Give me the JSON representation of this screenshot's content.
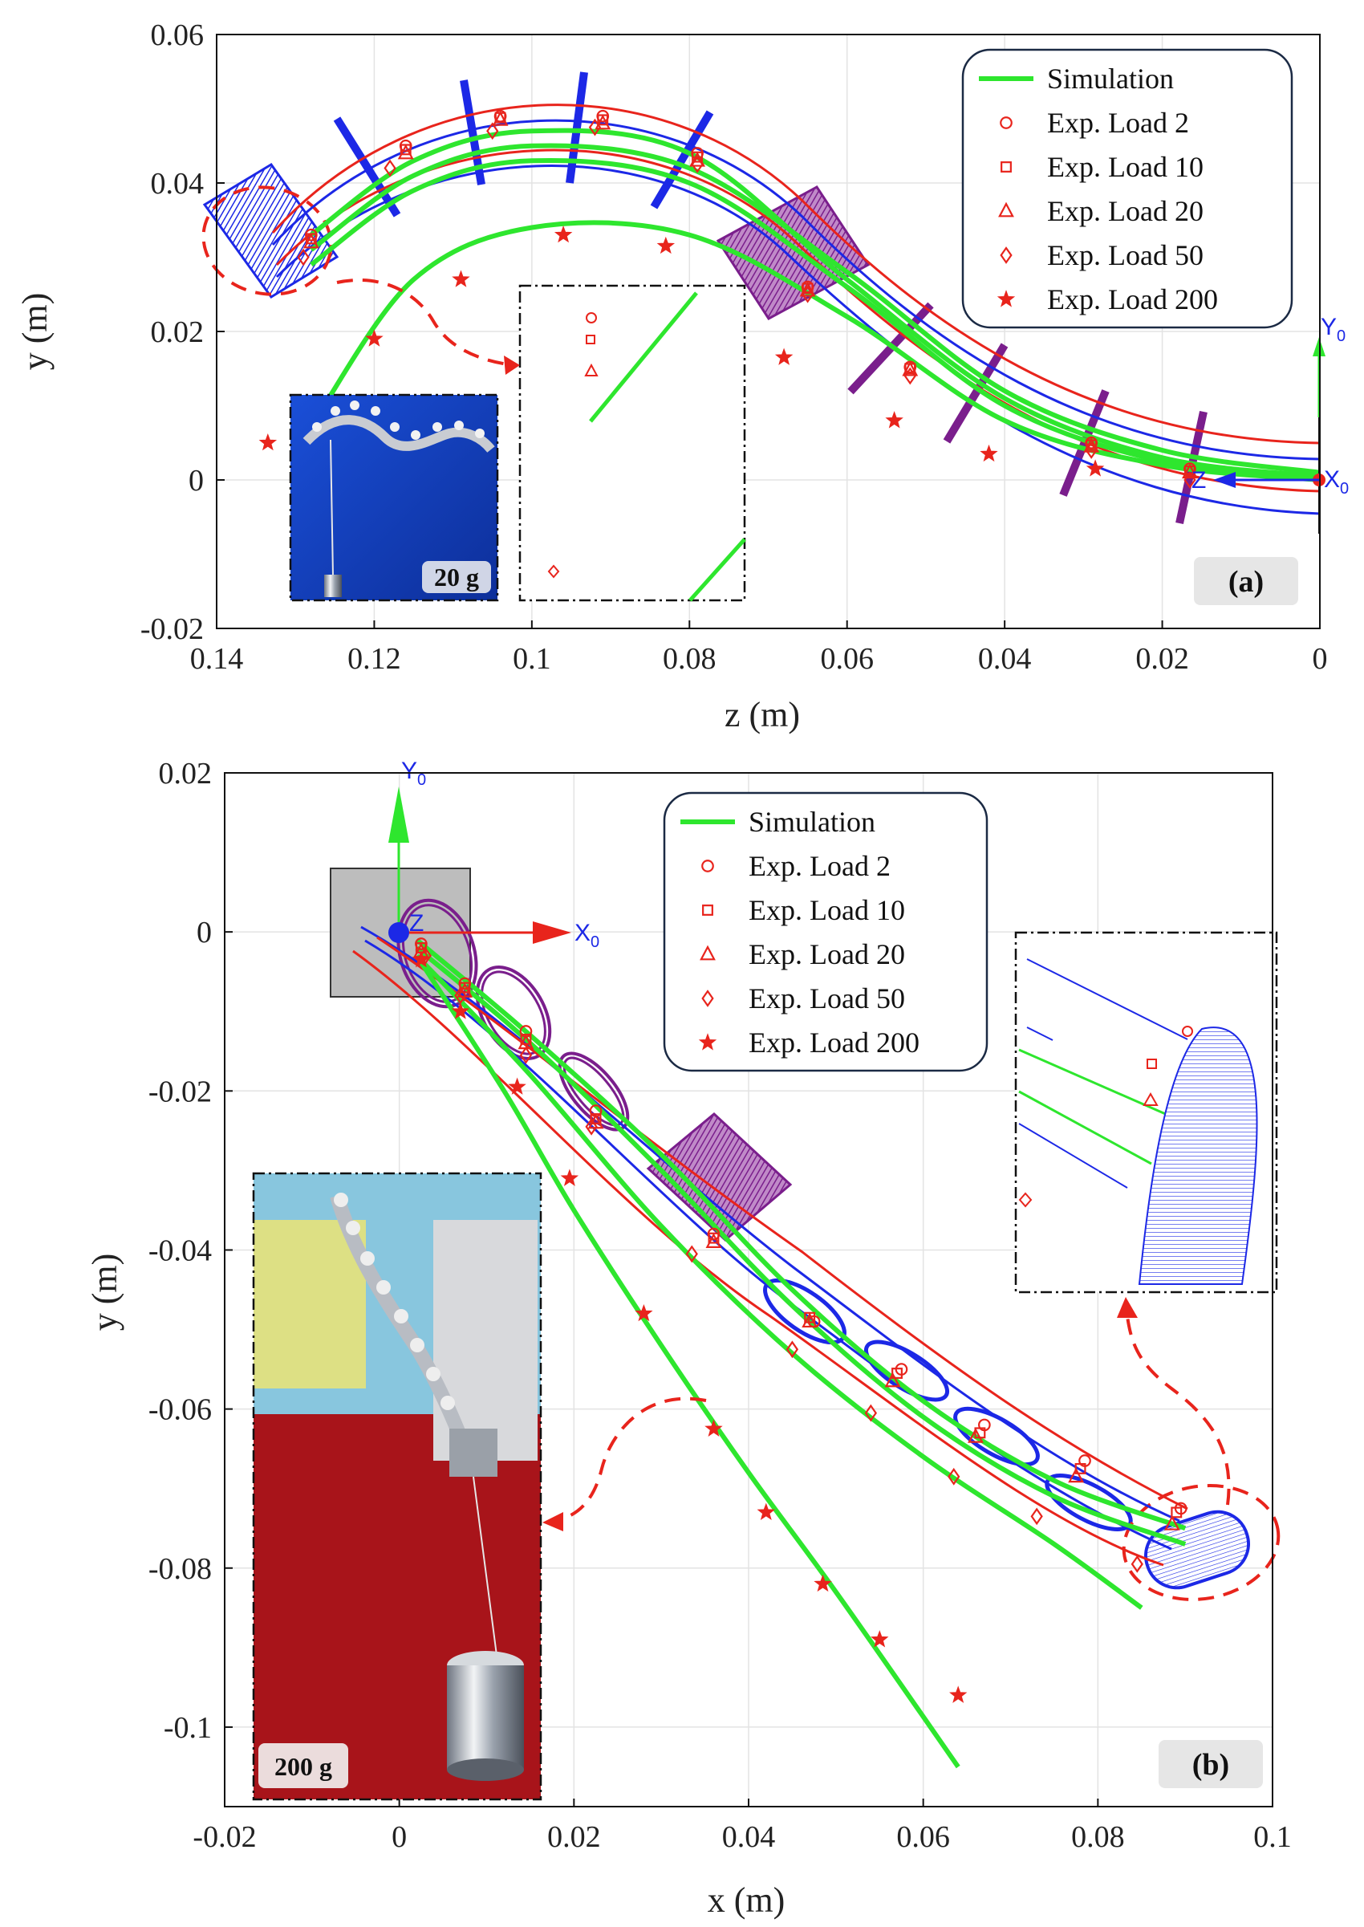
{
  "chart_data": [
    {
      "type": "line",
      "panel_label": "(a)",
      "xlabel": "z (m)",
      "ylabel": "y (m)",
      "xlim": [
        0.14,
        0
      ],
      "ylim": [
        -0.02,
        0.06
      ],
      "x_ticks": [
        "0.14",
        "0.12",
        "0.1",
        "0.08",
        "0.06",
        "0.04",
        "0.02",
        "0"
      ],
      "y_ticks": [
        "-0.02",
        "0",
        "0.02",
        "0.04",
        "0.06"
      ],
      "grid": true,
      "legend_position": "top-right",
      "legend": [
        "Simulation",
        "Exp. Load 2",
        "Exp. Load 10",
        "Exp. Load 20",
        "Exp. Load 50",
        "Exp. Load 200"
      ],
      "frame_labels": {
        "y": "Y",
        "x": "X",
        "sub": "0",
        "z": "Z"
      },
      "inset_label": "20 g",
      "series": [
        {
          "name": "Simulation",
          "x": [
            0,
            0.02,
            0.04,
            0.06,
            0.08,
            0.1,
            0.115,
            0.128
          ],
          "y": [
            0.001,
            0.004,
            0.012,
            0.028,
            0.042,
            0.045,
            0.041,
            0.031
          ]
        },
        {
          "x": [
            0,
            0.02,
            0.04,
            0.06,
            0.08,
            0.1,
            0.115,
            0.128
          ],
          "y": [
            0.0005,
            0.003,
            0.011,
            0.027,
            0.044,
            0.047,
            0.043,
            0.033
          ]
        },
        {
          "x": [
            0,
            0.02,
            0.04,
            0.06,
            0.08,
            0.1,
            0.115,
            0.128
          ],
          "y": [
            0,
            0.0025,
            0.01,
            0.026,
            0.04,
            0.043,
            0.039,
            0.029
          ]
        },
        {
          "x": [
            0,
            0.02,
            0.04,
            0.06,
            0.08,
            0.1,
            0.115,
            0.127
          ],
          "y": [
            0,
            0.002,
            0.008,
            0.022,
            0.033,
            0.034,
            0.027,
            0.009
          ]
        },
        {
          "name": "Exp. Load 2",
          "x": [
            0.0165,
            0.029,
            0.052,
            0.065,
            0.079,
            0.091,
            0.104,
            0.116,
            0.128
          ],
          "y": [
            0.0015,
            0.005,
            0.0152,
            0.026,
            0.044,
            0.049,
            0.049,
            0.045,
            0.033
          ]
        },
        {
          "name": "Exp. Load 10",
          "x": [
            0.0165,
            0.029,
            0.052,
            0.065,
            0.079,
            0.091,
            0.104,
            0.116,
            0.128
          ],
          "y": [
            0.0012,
            0.0047,
            0.015,
            0.0258,
            0.0435,
            0.0485,
            0.0488,
            0.0445,
            0.0325
          ]
        },
        {
          "name": "Exp. Load 20",
          "x": [
            0.0165,
            0.029,
            0.052,
            0.065,
            0.079,
            0.091,
            0.104,
            0.116,
            0.128
          ],
          "y": [
            0.001,
            0.0045,
            0.0148,
            0.0255,
            0.043,
            0.048,
            0.0485,
            0.044,
            0.032
          ]
        },
        {
          "name": "Exp. Load 50",
          "x": [
            0.0165,
            0.029,
            0.052,
            0.065,
            0.079,
            0.092,
            0.105,
            0.118,
            0.129
          ],
          "y": [
            0.0,
            0.004,
            0.014,
            0.025,
            0.0425,
            0.0475,
            0.047,
            0.042,
            0.03
          ]
        },
        {
          "name": "Exp. Load 200",
          "x": [
            0.0285,
            0.042,
            0.054,
            0.068,
            0.083,
            0.096,
            0.109,
            0.12,
            0.1335
          ],
          "y": [
            0.0015,
            0.0035,
            0.008,
            0.0165,
            0.0315,
            0.033,
            0.027,
            0.019,
            0.005
          ]
        }
      ]
    },
    {
      "type": "line",
      "panel_label": "(b)",
      "xlabel": "x (m)",
      "ylabel": "y (m)",
      "xlim": [
        -0.02,
        0.1
      ],
      "ylim": [
        -0.11,
        0.02
      ],
      "x_ticks": [
        "-0.02",
        "0",
        "0.02",
        "0.04",
        "0.06",
        "0.08",
        "0.1"
      ],
      "y_ticks": [
        "-0.1",
        "-0.08",
        "-0.06",
        "-0.04",
        "-0.02",
        "0",
        "0.02"
      ],
      "grid": true,
      "legend_position": "top-center",
      "legend": [
        "Simulation",
        "Exp. Load 2",
        "Exp. Load 10",
        "Exp. Load 20",
        "Exp. Load 50",
        "Exp. Load 200"
      ],
      "frame_labels": {
        "y": "Y",
        "x": "X",
        "sub": "0",
        "z": "Z"
      },
      "inset_label": "200 g",
      "series": [
        {
          "name": "Simulation",
          "x": [
            0.002,
            0.015,
            0.03,
            0.045,
            0.06,
            0.075,
            0.09
          ],
          "y": [
            -0.002,
            -0.014,
            -0.03,
            -0.047,
            -0.061,
            -0.071,
            -0.077
          ]
        },
        {
          "x": [
            0.002,
            0.015,
            0.03,
            0.045,
            0.06,
            0.075,
            0.09
          ],
          "y": [
            -0.001,
            -0.013,
            -0.028,
            -0.045,
            -0.059,
            -0.069,
            -0.075
          ]
        },
        {
          "x": [
            0.002,
            0.015,
            0.03,
            0.045,
            0.06,
            0.075,
            0.085
          ],
          "y": [
            -0.003,
            -0.018,
            -0.037,
            -0.053,
            -0.066,
            -0.077,
            -0.085
          ]
        },
        {
          "x": [
            0.002,
            0.012,
            0.02,
            0.03,
            0.04,
            0.05,
            0.064
          ],
          "y": [
            -0.003,
            -0.02,
            -0.035,
            -0.052,
            -0.068,
            -0.083,
            -0.105
          ]
        },
        {
          "name": "Exp. Load 2",
          "x": [
            0.0025,
            0.0075,
            0.0145,
            0.0225,
            0.036,
            0.0475,
            0.0575,
            0.067,
            0.0785,
            0.0895
          ],
          "y": [
            -0.0015,
            -0.0065,
            -0.0125,
            -0.0225,
            -0.038,
            -0.049,
            -0.055,
            -0.062,
            -0.0665,
            -0.0725
          ]
        },
        {
          "name": "Exp. Load 10",
          "x": [
            0.0025,
            0.0075,
            0.0145,
            0.0225,
            0.036,
            0.047,
            0.057,
            0.0665,
            0.078,
            0.089
          ],
          "y": [
            -0.002,
            -0.007,
            -0.0135,
            -0.0235,
            -0.0385,
            -0.0485,
            -0.0555,
            -0.063,
            -0.0675,
            -0.073
          ]
        },
        {
          "name": "Exp. Load 20",
          "x": [
            0.0025,
            0.0075,
            0.0145,
            0.0225,
            0.036,
            0.047,
            0.0565,
            0.066,
            0.0775,
            0.0885
          ],
          "y": [
            -0.0025,
            -0.0075,
            -0.014,
            -0.024,
            -0.039,
            -0.049,
            -0.0565,
            -0.0635,
            -0.0685,
            -0.0745
          ]
        },
        {
          "name": "Exp. Load 50",
          "x": [
            0.003,
            0.007,
            0.0145,
            0.022,
            0.0335,
            0.045,
            0.054,
            0.0635,
            0.073,
            0.0845
          ],
          "y": [
            -0.003,
            -0.008,
            -0.0155,
            -0.0245,
            -0.0405,
            -0.0525,
            -0.0605,
            -0.0685,
            -0.0735,
            -0.0795
          ]
        },
        {
          "name": "Exp. Load 200",
          "x": [
            0.0025,
            0.007,
            0.0135,
            0.0195,
            0.028,
            0.036,
            0.042,
            0.0485,
            0.055,
            0.064
          ],
          "y": [
            -0.0035,
            -0.01,
            -0.0195,
            -0.031,
            -0.048,
            -0.0625,
            -0.073,
            -0.082,
            -0.089,
            -0.096
          ]
        }
      ]
    }
  ]
}
